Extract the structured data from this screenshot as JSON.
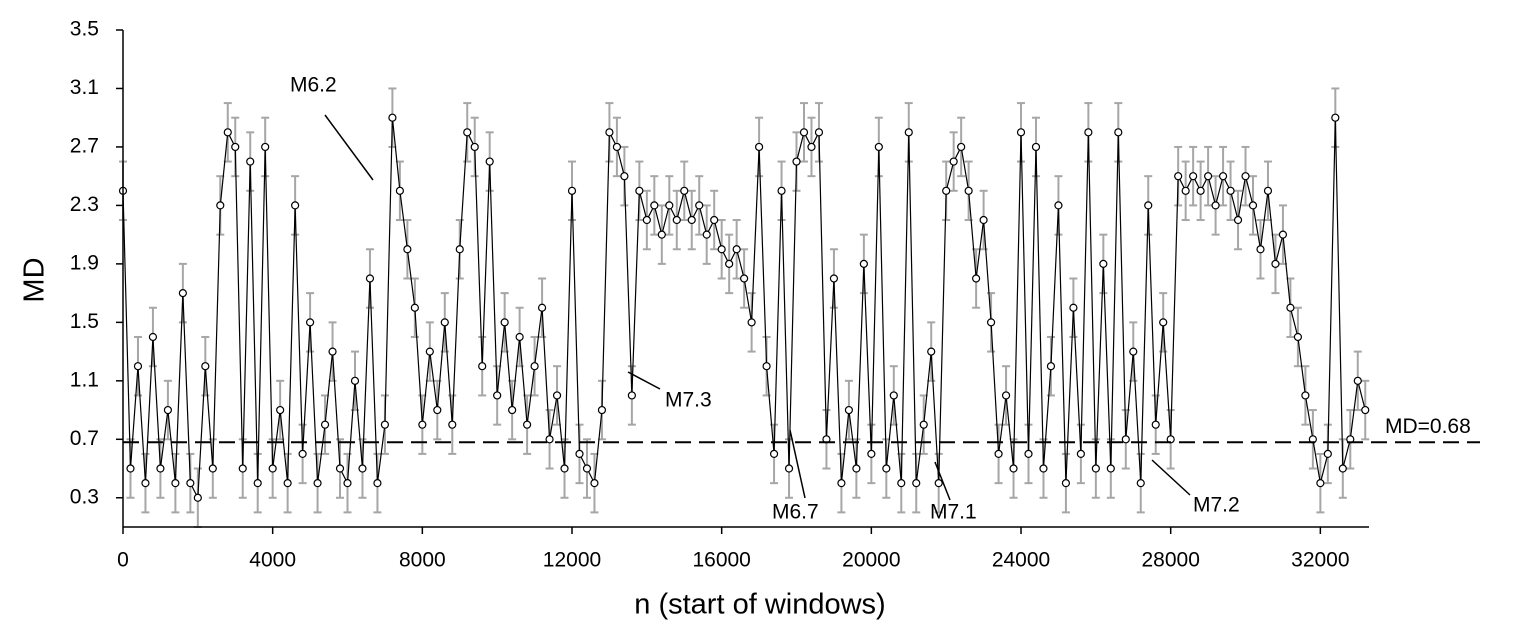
{
  "chart_data": {
    "type": "scatter",
    "x_label": "n (start of windows)",
    "y_label": "MD",
    "xlim": [
      0,
      33300
    ],
    "ylim": [
      0.1,
      3.5
    ],
    "xticks": [
      0,
      4000,
      8000,
      12000,
      16000,
      20000,
      24000,
      28000,
      32000
    ],
    "yticks": [
      0.3,
      0.7,
      1.1,
      1.5,
      1.9,
      2.3,
      2.7,
      3.1,
      3.5
    ],
    "hline": {
      "value": 0.68,
      "label": "MD=0.68"
    },
    "annotations": [
      {
        "text": "M6.2"
      },
      {
        "text": "M7.3"
      },
      {
        "text": "M6.7"
      },
      {
        "text": "M7.1"
      },
      {
        "text": "M7.2"
      }
    ],
    "series": [
      {
        "color": "#000000",
        "error_color": "#a6a6a6",
        "error": 0.2,
        "x": [
          0,
          200,
          400,
          600,
          800,
          1000,
          1200,
          1400,
          1600,
          1800,
          2000,
          2200,
          2400,
          2600,
          2800,
          3000,
          3200,
          3400,
          3600,
          3800,
          4000,
          4200,
          4400,
          4600,
          4800,
          5000,
          5200,
          5400,
          5600,
          5800,
          6000,
          6200,
          6400,
          6600,
          6800,
          7000,
          7200,
          7400,
          7600,
          7800,
          8000,
          8200,
          8400,
          8600,
          8800,
          9000,
          9200,
          9400,
          9600,
          9800,
          10000,
          10200,
          10400,
          10600,
          10800,
          11000,
          11200,
          11400,
          11600,
          11800,
          12000,
          12200,
          12400,
          12600,
          12800,
          13000,
          13200,
          13400,
          13600,
          13800,
          14000,
          14200,
          14400,
          14600,
          14800,
          15000,
          15200,
          15400,
          15600,
          15800,
          16000,
          16200,
          16400,
          16600,
          16800,
          17000,
          17200,
          17400,
          17600,
          17800,
          18000,
          18200,
          18400,
          18600,
          18800,
          19000,
          19200,
          19400,
          19600,
          19800,
          20000,
          20200,
          20400,
          20600,
          20800,
          21000,
          21200,
          21400,
          21600,
          21800,
          22000,
          22200,
          22400,
          22600,
          22800,
          23000,
          23200,
          23400,
          23600,
          23800,
          24000,
          24200,
          24400,
          24600,
          24800,
          25000,
          25200,
          25400,
          25600,
          25800,
          26000,
          26200,
          26400,
          26600,
          26800,
          27000,
          27200,
          27400,
          27600,
          27800,
          28000,
          28200,
          28400,
          28600,
          28800,
          29000,
          29200,
          29400,
          29600,
          29800,
          30000,
          30200,
          30400,
          30600,
          30800,
          31000,
          31200,
          31400,
          31600,
          31800,
          32000,
          32200,
          32400,
          32600,
          32800,
          33000,
          33200
        ],
        "values": [
          2.4,
          0.5,
          1.2,
          0.4,
          1.4,
          0.5,
          0.9,
          0.4,
          1.7,
          0.4,
          0.3,
          1.2,
          0.5,
          2.3,
          2.8,
          2.7,
          0.5,
          2.6,
          0.4,
          2.7,
          0.5,
          0.9,
          0.4,
          2.3,
          0.6,
          1.5,
          0.4,
          0.8,
          1.3,
          0.5,
          0.4,
          1.1,
          0.5,
          1.8,
          0.4,
          0.8,
          2.9,
          2.4,
          2.0,
          1.6,
          0.8,
          1.3,
          0.9,
          1.5,
          0.8,
          2.0,
          2.8,
          2.7,
          1.2,
          2.6,
          1.0,
          1.5,
          0.9,
          1.4,
          0.8,
          1.2,
          1.6,
          0.7,
          1.0,
          0.5,
          2.4,
          0.6,
          0.5,
          0.4,
          0.9,
          2.8,
          2.7,
          2.5,
          1.0,
          2.4,
          2.2,
          2.3,
          2.1,
          2.3,
          2.2,
          2.4,
          2.2,
          2.3,
          2.1,
          2.2,
          2.0,
          1.9,
          2.0,
          1.8,
          1.5,
          2.7,
          1.2,
          0.6,
          2.4,
          0.5,
          2.6,
          2.8,
          2.7,
          2.8,
          0.7,
          1.8,
          0.4,
          0.9,
          0.5,
          1.9,
          0.6,
          2.7,
          0.5,
          1.0,
          0.4,
          2.8,
          0.4,
          0.8,
          1.3,
          0.4,
          2.4,
          2.6,
          2.7,
          2.4,
          1.8,
          2.2,
          1.5,
          0.6,
          1.0,
          0.5,
          2.8,
          0.6,
          2.7,
          0.5,
          1.2,
          2.3,
          0.4,
          1.6,
          0.6,
          2.8,
          0.5,
          1.9,
          0.5,
          2.8,
          0.7,
          1.3,
          0.4,
          2.3,
          0.8,
          1.5,
          0.7,
          2.5,
          2.4,
          2.5,
          2.4,
          2.5,
          2.3,
          2.5,
          2.4,
          2.2,
          2.5,
          2.3,
          2.0,
          2.4,
          1.9,
          2.1,
          1.6,
          1.4,
          1.0,
          0.7,
          0.4,
          0.6,
          2.9,
          0.5,
          0.7,
          1.1,
          0.9
        ]
      }
    ]
  }
}
